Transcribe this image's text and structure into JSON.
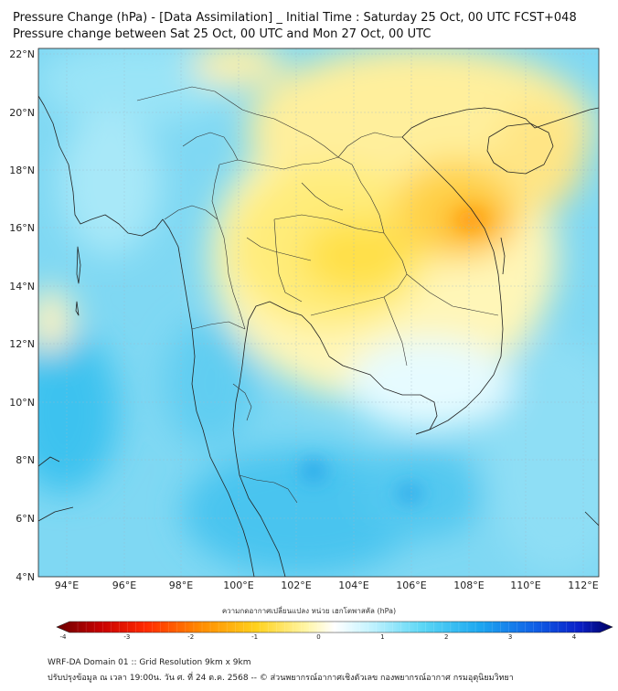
{
  "title_line1": "Pressure Change (hPa) - [Data Assimilation] _ Initial Time : Saturday 25 Oct, 00 UTC FCST+048",
  "title_line2": "Pressure change between Sat 25 Oct, 00 UTC and Mon 27 Oct, 00 UTC",
  "map": {
    "lat_labels": [
      "22°N",
      "20°N",
      "18°N",
      "16°N",
      "14°N",
      "12°N",
      "10°N",
      "8°N",
      "6°N",
      "4°N"
    ],
    "lon_labels": [
      "94°E",
      "96°E",
      "98°E",
      "100°E",
      "102°E",
      "104°E",
      "106°E",
      "108°E",
      "110°E",
      "112°E"
    ]
  },
  "colorbar": {
    "title": "ความกดอากาศเปลี่ยนแปลง หน่วย เฮกโตพาสคัล (hPa)",
    "ticks": [
      "-4",
      "-3",
      "-2",
      "-1",
      "0",
      "1",
      "2",
      "3",
      "4"
    ],
    "range": [
      -4,
      4
    ]
  },
  "footer_line1": "WRF-DA Domain 01 :: Grid Resolution 9km x 9km",
  "footer_line2": "ปรับปรุงข้อมูล ณ เวลา 19:00น. วัน ศ. ที่ 24 ต.ค. 2568 -- © ส่วนพยากรณ์อากาศเชิงตัวเลข กองพยากรณ์อากาศ กรมอุตุนิยมวิทยา"
}
